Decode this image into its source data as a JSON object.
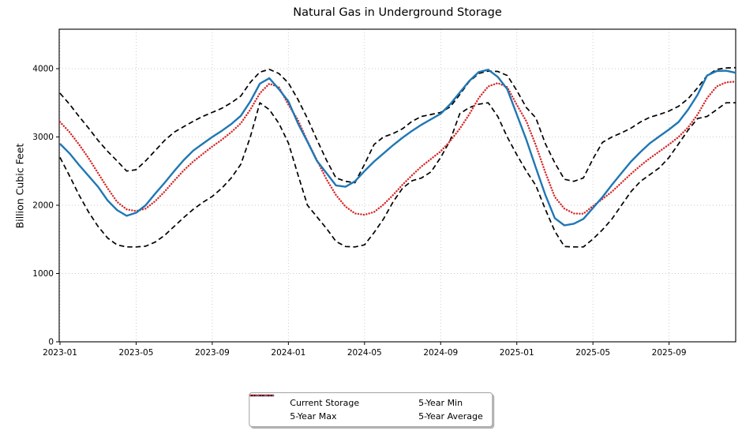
{
  "figure": {
    "title": "Natural Gas in Underground Storage",
    "ylabel": "Billion Cubic Feet"
  },
  "chart_data": {
    "type": "line",
    "title": "Natural Gas in Underground Storage",
    "xlabel": "",
    "ylabel": "Billion Cubic Feet",
    "ylim": [
      0,
      4578
    ],
    "yticks": [
      0,
      1000,
      2000,
      3000,
      4000
    ],
    "ytick_labels": [
      "0",
      "1000",
      "2000",
      "3000",
      "4000"
    ],
    "xtick_labels": [
      "2023-01",
      "2023-05",
      "2023-09",
      "2024-01",
      "2024-05",
      "2024-09",
      "2025-01",
      "2025-05",
      "2025-09"
    ],
    "xtick_months": [
      0,
      4,
      8,
      12,
      16,
      20,
      24,
      28,
      32
    ],
    "grid": true,
    "grid_color": "#c7c7c7",
    "legend_position": "below-center",
    "legend_row_major_order": [
      "Current Storage",
      "5-Year Min",
      "5-Year Max",
      "5-Year Average"
    ],
    "x_unit": "months since 2023-01 (semi-monthly samples)",
    "x_months": [
      0,
      0.5,
      1,
      1.5,
      2,
      2.5,
      3,
      3.5,
      4,
      4.5,
      5,
      5.5,
      6,
      6.5,
      7,
      7.5,
      8,
      8.5,
      9,
      9.5,
      10,
      10.5,
      11,
      11.5,
      12,
      12.5,
      13,
      13.5,
      14,
      14.5,
      15,
      15.5,
      16,
      16.5,
      17,
      17.5,
      18,
      18.5,
      19,
      19.5,
      20,
      20.5,
      21,
      21.5,
      22,
      22.5,
      23,
      23.5,
      24,
      24.5,
      25,
      25.5,
      26,
      26.5,
      27,
      27.5,
      28,
      28.5,
      29,
      29.5,
      30,
      30.5,
      31,
      31.5,
      32,
      32.5,
      33,
      33.5,
      34,
      34.5,
      35,
      35.5
    ],
    "series": [
      {
        "name": "Current Storage",
        "color": "#1f77b4",
        "style": "solid",
        "width": 2.4,
        "values": [
          2900,
          2760,
          2590,
          2430,
          2270,
          2070,
          1930,
          1845,
          1890,
          2000,
          2170,
          2330,
          2500,
          2660,
          2800,
          2900,
          3000,
          3090,
          3190,
          3310,
          3520,
          3780,
          3860,
          3700,
          3520,
          3200,
          2930,
          2650,
          2470,
          2290,
          2270,
          2350,
          2500,
          2640,
          2760,
          2880,
          2990,
          3090,
          3180,
          3260,
          3340,
          3480,
          3650,
          3820,
          3950,
          3985,
          3880,
          3700,
          3330,
          2960,
          2550,
          2150,
          1810,
          1705,
          1730,
          1800,
          1960,
          2120,
          2300,
          2470,
          2640,
          2780,
          2910,
          3010,
          3110,
          3220,
          3400,
          3620,
          3900,
          3965,
          3970,
          3940
        ]
      },
      {
        "name": "5-Year Max",
        "color": "#000000",
        "style": "dashed",
        "width": 1.7,
        "values": [
          3640,
          3480,
          3300,
          3130,
          2950,
          2790,
          2650,
          2500,
          2520,
          2650,
          2800,
          2950,
          3070,
          3150,
          3230,
          3300,
          3360,
          3420,
          3500,
          3600,
          3800,
          3950,
          3990,
          3930,
          3790,
          3550,
          3270,
          2960,
          2660,
          2400,
          2350,
          2330,
          2600,
          2890,
          3000,
          3050,
          3120,
          3230,
          3300,
          3330,
          3360,
          3440,
          3620,
          3810,
          3930,
          3965,
          3960,
          3900,
          3680,
          3430,
          3280,
          2900,
          2620,
          2380,
          2350,
          2400,
          2680,
          2920,
          3000,
          3060,
          3130,
          3220,
          3290,
          3330,
          3380,
          3450,
          3560,
          3720,
          3900,
          3990,
          4010,
          4015
        ]
      },
      {
        "name": "5-Year Min",
        "color": "#000000",
        "style": "dashed",
        "width": 1.7,
        "values": [
          2700,
          2430,
          2150,
          1900,
          1690,
          1520,
          1420,
          1390,
          1390,
          1400,
          1460,
          1560,
          1690,
          1820,
          1940,
          2040,
          2130,
          2250,
          2400,
          2600,
          3000,
          3500,
          3400,
          3200,
          2910,
          2450,
          2000,
          1830,
          1660,
          1470,
          1395,
          1390,
          1420,
          1600,
          1800,
          2050,
          2250,
          2360,
          2400,
          2490,
          2700,
          2950,
          3340,
          3430,
          3480,
          3500,
          3300,
          3000,
          2740,
          2500,
          2290,
          1940,
          1620,
          1395,
          1390,
          1390,
          1505,
          1640,
          1800,
          2000,
          2200,
          2350,
          2450,
          2550,
          2700,
          2900,
          3100,
          3270,
          3300,
          3400,
          3500,
          3500
        ]
      },
      {
        "name": "5-Year Average",
        "color": "#d62728",
        "style": "dotted",
        "width": 2.4,
        "values": [
          3220,
          3070,
          2890,
          2690,
          2470,
          2250,
          2050,
          1940,
          1915,
          1950,
          2060,
          2200,
          2360,
          2510,
          2640,
          2750,
          2860,
          2960,
          3070,
          3200,
          3400,
          3640,
          3780,
          3730,
          3470,
          3250,
          2940,
          2660,
          2380,
          2150,
          1980,
          1880,
          1860,
          1900,
          2010,
          2150,
          2300,
          2440,
          2570,
          2680,
          2790,
          2940,
          3120,
          3330,
          3570,
          3740,
          3790,
          3730,
          3470,
          3230,
          2880,
          2480,
          2120,
          1950,
          1880,
          1875,
          1990,
          2090,
          2200,
          2330,
          2460,
          2580,
          2690,
          2790,
          2890,
          3000,
          3140,
          3330,
          3570,
          3740,
          3800,
          3810
        ]
      }
    ]
  }
}
